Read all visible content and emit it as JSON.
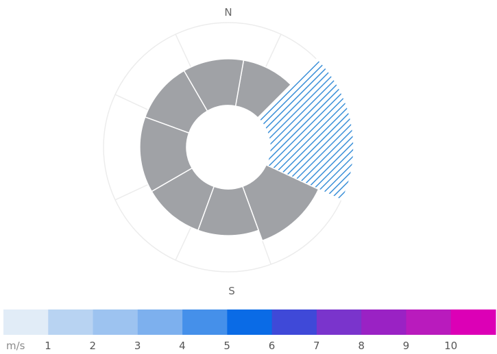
{
  "chart_data": {
    "type": "polar-bar",
    "direction_labels": [
      "N",
      "S"
    ],
    "sectors": [
      {
        "start_angle": 10,
        "end_angle": 45,
        "value": 0.3,
        "color": "#a0a2a6",
        "highlighted": false
      },
      {
        "start_angle": 45,
        "end_angle": 115,
        "value": 1.0,
        "color": "#3a8fd8",
        "highlighted": true,
        "pattern": "diagonal-hatch"
      },
      {
        "start_angle": 115,
        "end_angle": 160,
        "value": 0.51,
        "color": "#a0a2a6",
        "highlighted": false
      },
      {
        "start_angle": 160,
        "end_angle": 200,
        "value": 0.3,
        "color": "#a0a2a6",
        "highlighted": false
      },
      {
        "start_angle": 200,
        "end_angle": 240,
        "value": 0.3,
        "color": "#a0a2a6",
        "highlighted": false
      },
      {
        "start_angle": 240,
        "end_angle": 290,
        "value": 0.3,
        "color": "#a0a2a6",
        "highlighted": false
      },
      {
        "start_angle": 290,
        "end_angle": 330,
        "value": 0.3,
        "color": "#a0a2a6",
        "highlighted": false
      },
      {
        "start_angle": 330,
        "end_angle": 370,
        "value": 0.3,
        "color": "#a0a2a6",
        "highlighted": false
      }
    ],
    "spoke_angles": [
      25,
      65,
      110,
      160,
      205,
      245,
      295,
      335
    ],
    "colorbar": {
      "unit": "m/s",
      "tick_labels": [
        "1",
        "2",
        "3",
        "4",
        "5",
        "6",
        "7",
        "8",
        "9",
        "10"
      ],
      "colors": [
        "#e1ecf7",
        "#b8d3f2",
        "#9dc3f0",
        "#7db0ee",
        "#4590ea",
        "#0a6be6",
        "#3f49d8",
        "#7a34cc",
        "#9a22c4",
        "#b91bbd",
        "#dc00b6"
      ]
    }
  }
}
